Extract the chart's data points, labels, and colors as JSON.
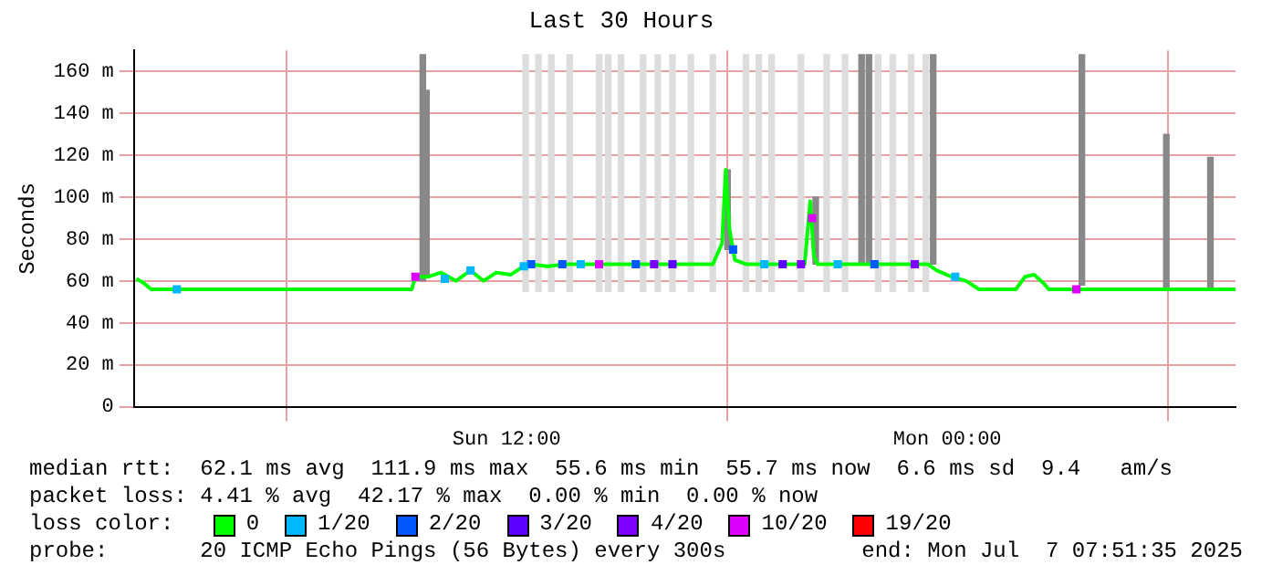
{
  "chart_data": {
    "type": "line",
    "title": "Last 30 Hours",
    "ylabel": "Seconds",
    "legend_title": "loss color:",
    "legend": "bottom left",
    "grid": true,
    "xlim": [
      "2025-07-06T01:51",
      "2025-07-07T07:51"
    ],
    "xticks": [
      {
        "value": "2025-07-06T12:00",
        "label": "Sun 12:00"
      },
      {
        "value": "2025-07-07T00:00",
        "label": "Mon 00:00"
      }
    ],
    "ylim": [
      0,
      170
    ],
    "yticks": [
      {
        "value": 0,
        "label": "0"
      },
      {
        "value": 20,
        "label": "20 m"
      },
      {
        "value": 40,
        "label": "40 m"
      },
      {
        "value": 60,
        "label": "60 m"
      },
      {
        "value": 80,
        "label": "80 m"
      },
      {
        "value": 100,
        "label": "100 m"
      },
      {
        "value": 120,
        "label": "120 m"
      },
      {
        "value": 140,
        "label": "140 m"
      },
      {
        "value": 160,
        "label": "160 m"
      }
    ],
    "series": [
      {
        "type": "bar",
        "colors": [
          "#888888",
          "#888888",
          "#dddddd",
          "#dddddd",
          "#dddddd",
          "#dddddd",
          "#dddddd",
          "#dddddd",
          "#dddddd",
          "#dddddd",
          "#dddddd",
          "#dddddd",
          "#dddddd",
          "#dddddd",
          "#888888",
          "#dddddd",
          "#dddddd",
          "#dddddd",
          "#dddddd",
          "#888888",
          "#dddddd",
          "#dddddd",
          "#888888",
          "#888888",
          "#dddddd",
          "#dddddd",
          "#dddddd",
          "#dddddd",
          "#888888",
          "#888888",
          "#888888",
          "#888888"
        ],
        "x": [
          "2025-07-06T09:43",
          "2025-07-06T09:49",
          "2025-07-06T12:31",
          "2025-07-06T12:52",
          "2025-07-06T13:13",
          "2025-07-06T13:43",
          "2025-07-06T14:31",
          "2025-07-06T14:46",
          "2025-07-06T15:07",
          "2025-07-06T15:43",
          "2025-07-06T16:07",
          "2025-07-06T16:31",
          "2025-07-06T17:01",
          "2025-07-06T17:37",
          "2025-07-06T18:01",
          "2025-07-06T18:31",
          "2025-07-06T18:52",
          "2025-07-06T19:13",
          "2025-07-06T20:01",
          "2025-07-06T20:25",
          "2025-07-06T20:43",
          "2025-07-06T21:13",
          "2025-07-06T21:40",
          "2025-07-06T21:52",
          "2025-07-06T22:07",
          "2025-07-06T22:31",
          "2025-07-06T23:01",
          "2025-07-06T23:25",
          "2025-07-06T23:37",
          "2025-07-07T03:40",
          "2025-07-07T05:58",
          "2025-07-07T07:10"
        ],
        "base": [
          60,
          62,
          55,
          55,
          55,
          55,
          55,
          55,
          55,
          55,
          55,
          55,
          55,
          55,
          75,
          55,
          55,
          55,
          55,
          68,
          55,
          55,
          68,
          68,
          55,
          55,
          55,
          55,
          68,
          58,
          56,
          56
        ],
        "values": [
          108,
          89,
          113,
          113,
          113,
          113,
          113,
          113,
          113,
          113,
          113,
          113,
          113,
          113,
          38,
          113,
          113,
          113,
          113,
          32,
          113,
          113,
          100,
          100,
          113,
          113,
          113,
          113,
          100,
          110,
          74,
          63
        ]
      },
      {
        "name": "0",
        "color": "#00ff00",
        "x": [
          "2025-07-06T01:55",
          "2025-07-06T02:07",
          "2025-07-06T02:19",
          "2025-07-06T09:01",
          "2025-07-06T09:25",
          "2025-07-06T09:31",
          "2025-07-06T09:52",
          "2025-07-06T10:13",
          "2025-07-06T10:37",
          "2025-07-06T11:01",
          "2025-07-06T11:22",
          "2025-07-06T11:43",
          "2025-07-06T12:07",
          "2025-07-06T12:22",
          "2025-07-06T12:37",
          "2025-07-06T13:07",
          "2025-07-06T13:37",
          "2025-07-06T17:37",
          "2025-07-06T17:52",
          "2025-07-06T17:58",
          "2025-07-06T18:04",
          "2025-07-06T18:13",
          "2025-07-06T18:31",
          "2025-07-06T20:07",
          "2025-07-06T20:16",
          "2025-07-06T20:22",
          "2025-07-06T20:28",
          "2025-07-06T23:28",
          "2025-07-06T23:43",
          "2025-07-07T00:07",
          "2025-07-07T00:31",
          "2025-07-07T00:52",
          "2025-07-07T01:52",
          "2025-07-07T02:07",
          "2025-07-07T02:22",
          "2025-07-07T02:37",
          "2025-07-07T02:46",
          "2025-07-07T07:51"
        ],
        "values": [
          61,
          59,
          56,
          56,
          56,
          62,
          62,
          64,
          60,
          65,
          60,
          64,
          63,
          66,
          68,
          67,
          68,
          68,
          78,
          113,
          85,
          70,
          68,
          68,
          98,
          72,
          68,
          68,
          65,
          62,
          60,
          56,
          56,
          62,
          63,
          59,
          56,
          56
        ]
      },
      {
        "type": "scatter",
        "marker": "square",
        "name": "1/20",
        "color": "#00b8ff",
        "x": [
          "2025-07-06T03:01",
          "2025-07-06T10:19",
          "2025-07-06T11:01",
          "2025-07-06T12:28",
          "2025-07-06T14:01",
          "2025-07-06T19:01",
          "2025-07-06T21:01",
          "2025-07-07T00:13"
        ],
        "values": [
          56,
          61,
          65,
          67,
          68,
          68,
          68,
          62
        ]
      },
      {
        "type": "scatter",
        "marker": "square",
        "name": "2/20",
        "color": "#0059ff",
        "x": [
          "2025-07-06T12:40",
          "2025-07-06T13:31",
          "2025-07-06T15:31",
          "2025-07-06T18:10",
          "2025-07-06T22:01"
        ],
        "values": [
          68,
          68,
          68,
          75,
          68
        ]
      },
      {
        "type": "scatter",
        "marker": "square",
        "name": "3/20",
        "color": "#5e00ff",
        "x": [
          "2025-07-06T16:31",
          "2025-07-06T19:31"
        ],
        "values": [
          68,
          68
        ]
      },
      {
        "type": "scatter",
        "marker": "square",
        "name": "4/20",
        "color": "#7e00ff",
        "x": [
          "2025-07-06T16:01",
          "2025-07-06T20:01",
          "2025-07-06T23:07"
        ],
        "values": [
          68,
          68,
          68
        ]
      },
      {
        "type": "scatter",
        "marker": "square",
        "name": "10/20",
        "color": "#dd00ff",
        "x": [
          "2025-07-06T09:31",
          "2025-07-06T14:31",
          "2025-07-06T20:19",
          "2025-07-07T03:31"
        ],
        "values": [
          62,
          68,
          90,
          56
        ]
      },
      {
        "type": "scatter",
        "marker": "square",
        "name": "19/20",
        "color": "#ff0000"
      }
    ],
    "annotations": [
      "median rtt:  62.1 ms avg  111.9 ms max  55.6 ms min  55.7 ms now  6.6 ms sd  9.4   am/s",
      "packet loss: 4.41 % avg  42.17 % max  0.00 % min  0.00 % now",
      "probe:       20 ICMP Echo Pings (56 Bytes) every 300s",
      "end: Mon Jul  7 07:51:35 2025"
    ]
  }
}
